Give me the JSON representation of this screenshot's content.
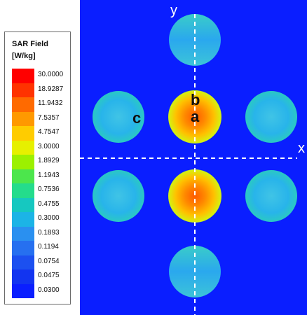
{
  "legend": {
    "title_line1": "SAR Field",
    "title_line2": "[W/kg]",
    "ticks": [
      "30.0000",
      "18.9287",
      "11.9432",
      "7.5357",
      "4.7547",
      "3.0000",
      "1.8929",
      "1.1943",
      "0.7536",
      "0.4755",
      "0.3000",
      "0.1893",
      "0.1194",
      "0.0754",
      "0.0475",
      "0.0300"
    ],
    "colors": [
      "#ff0000",
      "#ff3300",
      "#ff6a00",
      "#ff9900",
      "#ffcc00",
      "#e6f000",
      "#9cf000",
      "#4ce64c",
      "#24dc8c",
      "#16c8c0",
      "#1cb4e6",
      "#2a90f0",
      "#2670f0",
      "#1c50f0",
      "#1234f0",
      "#0a1eff"
    ]
  },
  "field": {
    "background": "#0a1eff",
    "axis_x_label": "x",
    "axis_y_label": "y",
    "markers": {
      "a": "a",
      "b": "b",
      "c": "c"
    }
  }
}
